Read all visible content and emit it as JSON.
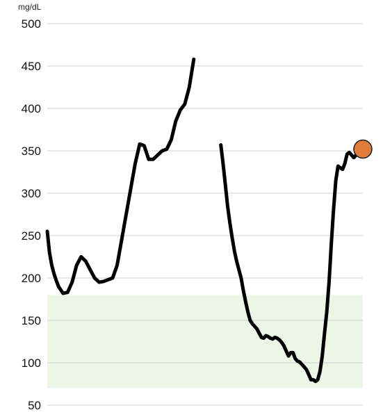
{
  "chart_data": {
    "type": "line",
    "title": "",
    "xlabel": "",
    "ylabel": "mg/dL",
    "ylim": [
      50,
      500
    ],
    "yticks": [
      500,
      450,
      400,
      350,
      300,
      250,
      200,
      150,
      100,
      50
    ],
    "grid": true,
    "target_range": [
      70,
      180
    ],
    "colors": {
      "line": "#000000",
      "target_band": "#edf5e6",
      "marker": "#e07b39",
      "marker_stroke": "#1a1a1a"
    },
    "series": [
      {
        "segments": [
          [
            [
              0,
              255
            ],
            [
              1,
              230
            ],
            [
              2,
              215
            ],
            [
              3,
              205
            ],
            [
              4,
              197
            ],
            [
              5,
              190
            ],
            [
              7,
              182
            ],
            [
              9,
              183
            ],
            [
              11,
              195
            ],
            [
              13,
              215
            ],
            [
              15,
              225
            ],
            [
              17,
              220
            ],
            [
              19,
              210
            ],
            [
              21,
              200
            ],
            [
              23,
              195
            ],
            [
              25,
              196
            ],
            [
              27,
              198
            ],
            [
              29,
              200
            ],
            [
              31,
              215
            ],
            [
              33,
              245
            ],
            [
              35,
              275
            ],
            [
              37,
              305
            ],
            [
              39,
              335
            ],
            [
              41,
              358
            ],
            [
              43,
              356
            ],
            [
              45,
              340
            ],
            [
              47,
              340
            ],
            [
              49,
              345
            ],
            [
              51,
              350
            ],
            [
              53,
              352
            ],
            [
              55,
              363
            ],
            [
              57,
              385
            ],
            [
              59,
              398
            ],
            [
              61,
              405
            ],
            [
              63,
              425
            ],
            [
              65,
              458
            ]
          ],
          [
            [
              77,
              357
            ],
            [
              78,
              335
            ],
            [
              79,
              310
            ],
            [
              80,
              285
            ],
            [
              81,
              265
            ],
            [
              82,
              248
            ],
            [
              83,
              232
            ],
            [
              84,
              220
            ],
            [
              85,
              210
            ],
            [
              86,
              200
            ],
            [
              87,
              185
            ],
            [
              88,
              172
            ],
            [
              89,
              160
            ],
            [
              90,
              150
            ],
            [
              91,
              146
            ],
            [
              92,
              143
            ],
            [
              93,
              140
            ],
            [
              94,
              135
            ],
            [
              95,
              130
            ],
            [
              96,
              129
            ],
            [
              97,
              132
            ],
            [
              98,
              131
            ],
            [
              99,
              129
            ],
            [
              100,
              128
            ],
            [
              101,
              130
            ],
            [
              102,
              129
            ],
            [
              103,
              127
            ],
            [
              104,
              124
            ],
            [
              105,
              120
            ],
            [
              106,
              114
            ],
            [
              107,
              108
            ],
            [
              108,
              112
            ],
            [
              109,
              112
            ],
            [
              110,
              105
            ],
            [
              111,
              102
            ],
            [
              112,
              101
            ],
            [
              113,
              98
            ],
            [
              114,
              95
            ],
            [
              115,
              92
            ],
            [
              116,
              86
            ],
            [
              117,
              80
            ],
            [
              118,
              80
            ],
            [
              119,
              78
            ],
            [
              120,
              80
            ],
            [
              121,
              90
            ],
            [
              122,
              108
            ],
            [
              123,
              135
            ],
            [
              124,
              160
            ],
            [
              125,
              195
            ],
            [
              126,
              240
            ],
            [
              127,
              280
            ],
            [
              128,
              315
            ],
            [
              129,
              332
            ],
            [
              130,
              330
            ],
            [
              131,
              328
            ],
            [
              132,
              335
            ],
            [
              133,
              346
            ],
            [
              134,
              348
            ],
            [
              135,
              345
            ],
            [
              136,
              342
            ],
            [
              137,
              345
            ],
            [
              138,
              349
            ],
            [
              139,
              351
            ],
            [
              140,
              352
            ]
          ]
        ]
      }
    ],
    "xlim": [
      0,
      140
    ],
    "current_point": {
      "x": 140,
      "y": 352
    }
  }
}
